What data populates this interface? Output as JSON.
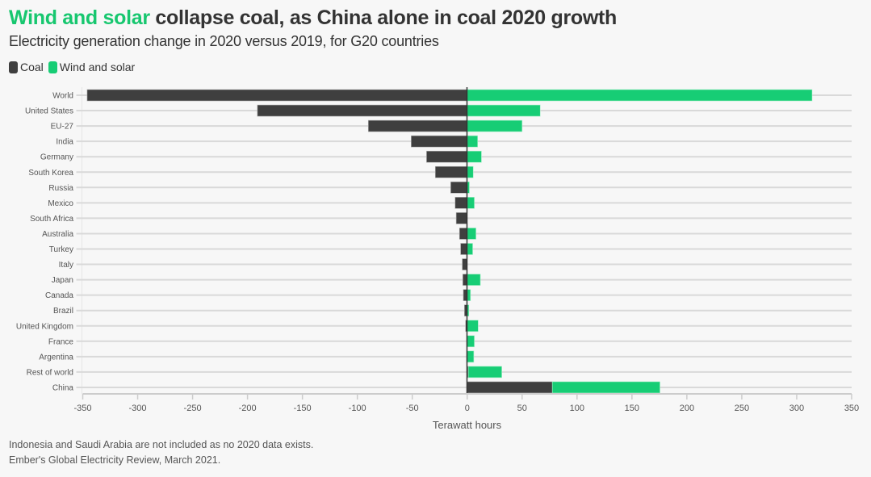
{
  "header": {
    "title_highlight": "Wind and solar",
    "title_rest": " collapse coal, as China alone in coal 2020 growth",
    "subtitle": "Electricity generation change in 2020 versus 2019, for G20 countries"
  },
  "legend": [
    {
      "label": "Coal",
      "color": "#3f3f3f"
    },
    {
      "label": "Wind and solar",
      "color": "#17cd75"
    }
  ],
  "chart_data": {
    "type": "bar",
    "orientation": "horizontal",
    "stacked": true,
    "title": "Wind and solar collapse coal, as China alone in coal 2020 growth",
    "subtitle": "Electricity generation change in 2020 versus 2019, for G20 countries",
    "xlabel": "Terawatt hours",
    "ylabel": "",
    "xlim": [
      -350,
      350
    ],
    "xticks": [
      -350,
      -300,
      -250,
      -200,
      -150,
      -100,
      -50,
      0,
      50,
      100,
      150,
      200,
      250,
      300,
      350
    ],
    "grid": true,
    "legend_position": "top-left",
    "categories": [
      "World",
      "United States",
      "EU-27",
      "India",
      "Germany",
      "South Korea",
      "Russia",
      "Mexico",
      "South Africa",
      "Australia",
      "Turkey",
      "Italy",
      "Japan",
      "Canada",
      "Brazil",
      "United Kingdom",
      "France",
      "Argentina",
      "Rest of world",
      "China"
    ],
    "series": [
      {
        "name": "Coal",
        "color": "#3f3f3f",
        "values": [
          -346,
          -191,
          -90,
          -51,
          -37,
          -29,
          -15,
          -11,
          -10,
          -7,
          -6,
          -4.5,
          -4,
          -3.5,
          -2.5,
          -1.5,
          -0.5,
          -0.5,
          1,
          77.5
        ]
      },
      {
        "name": "Wind and solar",
        "color": "#17cd75",
        "values": [
          314,
          66.5,
          50,
          9.5,
          13,
          5.5,
          2,
          6.5,
          0,
          8,
          5,
          0,
          12,
          3,
          1.5,
          10,
          6.5,
          6,
          30.5,
          98
        ]
      }
    ]
  },
  "footnotes": [
    "Indonesia and Saudi Arabia are not included as no 2020 data exists.",
    "Ember's Global Electricity Review, March 2021."
  ]
}
